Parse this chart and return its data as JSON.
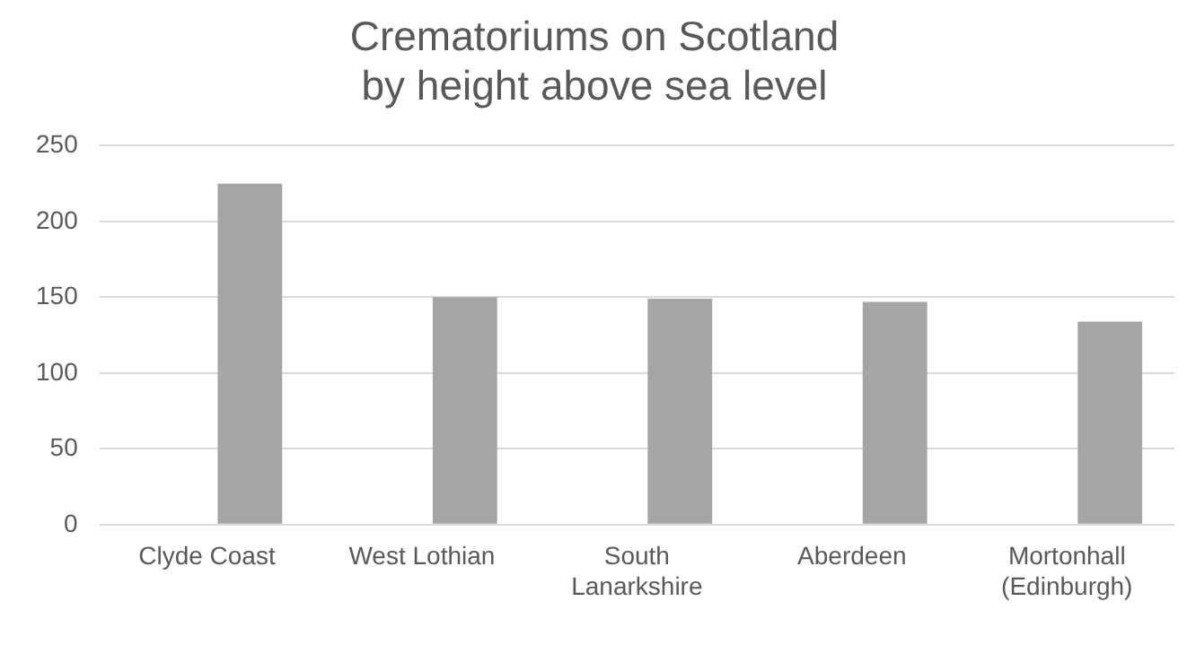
{
  "chart_data": {
    "type": "bar",
    "title": "Crematoriums on Scotland\nby height above sea level",
    "categories": [
      "Clyde Coast",
      "West Lothian",
      "South Lanarkshire",
      "Aberdeen",
      "Mortonhall (Edinburgh)"
    ],
    "series": [
      {
        "color": "#a5a5a5",
        "values": [
          null,
          null,
          null,
          null,
          null
        ]
      },
      {
        "color": "#a5a5a5",
        "values": [
          225,
          150,
          149,
          147,
          134
        ]
      }
    ],
    "ylim": [
      0,
      250
    ],
    "yticks": [
      0,
      50,
      100,
      150,
      200,
      250
    ],
    "grid": "y",
    "legend": false
  }
}
